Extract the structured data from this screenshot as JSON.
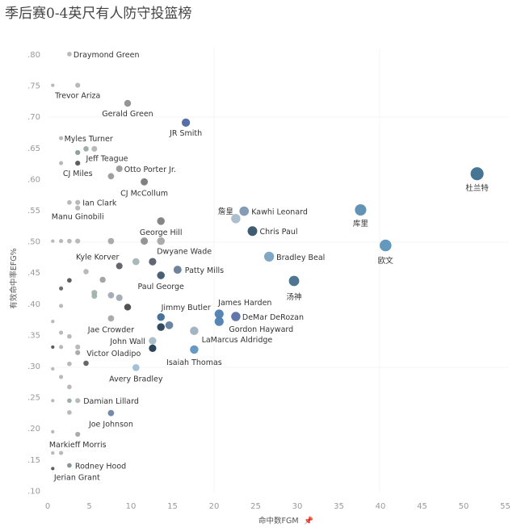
{
  "chart_data": {
    "type": "scatter",
    "title": "季后赛0-4英尺有人防守投篮榜",
    "xlabel": "命中数FGM",
    "ylabel": "有效命中率EFG%",
    "xlim": [
      0,
      55
    ],
    "ylim": [
      0.1,
      0.8
    ],
    "xticks": [
      "0",
      "5",
      "10",
      "15",
      "20",
      "25",
      "30",
      "35",
      "40",
      "45",
      "50",
      "55"
    ],
    "yticks": [
      ".80",
      ".75",
      ".70",
      ".65",
      ".60",
      ".55",
      ".50",
      ".45",
      ".40",
      ".35",
      ".30",
      ".25",
      ".20",
      ".15",
      ".10"
    ],
    "grid": false,
    "size_encodes": "FGM",
    "points": [
      {
        "label": "Draymond Green",
        "x": 3,
        "y": 0.8
      },
      {
        "x": 1,
        "y": 0.75
      },
      {
        "label": "Trevor Ariza",
        "x": 4,
        "y": 0.75
      },
      {
        "label": "Gerald Green",
        "x": 10,
        "y": 0.721,
        "c": "#8f8f8f"
      },
      {
        "label": "JR Smith",
        "x": 17,
        "y": 0.69,
        "c": "#4d67a0"
      },
      {
        "label": "Myles Turner",
        "x": 2,
        "y": 0.665
      },
      {
        "label": "Jeff Teague",
        "x": 5,
        "y": 0.648,
        "c": "#9aa9a8"
      },
      {
        "x": 6,
        "y": 0.648
      },
      {
        "x": 4,
        "y": 0.642,
        "c": "#8a9a9a"
      },
      {
        "x": 2,
        "y": 0.625
      },
      {
        "label": "CJ Miles",
        "x": 4,
        "y": 0.625,
        "c": "#555"
      },
      {
        "label": "Otto Porter Jr.",
        "x": 9,
        "y": 0.616,
        "c": "#9a9a9a"
      },
      {
        "x": 8,
        "y": 0.604,
        "c": "#9a9a9a"
      },
      {
        "label": "CJ McCollum",
        "x": 12,
        "y": 0.595,
        "c": "#7a7a7a"
      },
      {
        "x": 3,
        "y": 0.562
      },
      {
        "label": "Ian Clark",
        "x": 4,
        "y": 0.562
      },
      {
        "label": "Manu Ginobili",
        "x": 4,
        "y": 0.553
      },
      {
        "label": "Kawhi Leonard",
        "x": 24,
        "y": 0.548,
        "c": "#7d98b3"
      },
      {
        "label": "詹皇",
        "x": 23,
        "y": 0.536,
        "c": "#a9bccb"
      },
      {
        "label": "库里",
        "x": 38,
        "y": 0.55,
        "c": "#5b8db0"
      },
      {
        "label": "George Hill",
        "x": 14,
        "y": 0.532,
        "c": "#7f7f7f"
      },
      {
        "label": "Chris Paul",
        "x": 25,
        "y": 0.516,
        "c": "#34546b"
      },
      {
        "label": "杜兰特",
        "x": 52,
        "y": 0.608,
        "c": "#3d6e8e"
      },
      {
        "label": "欧文",
        "x": 41,
        "y": 0.493,
        "c": "#5a93b8"
      },
      {
        "x": 1,
        "y": 0.5
      },
      {
        "x": 2,
        "y": 0.5
      },
      {
        "x": 3,
        "y": 0.5
      },
      {
        "x": 4,
        "y": 0.5
      },
      {
        "x": 8,
        "y": 0.5,
        "c": "#a6a6a6"
      },
      {
        "x": 12,
        "y": 0.5,
        "c": "#8f8f8f"
      },
      {
        "label": "Dwyane Wade",
        "x": 14,
        "y": 0.5,
        "c": "#a6a6a6"
      },
      {
        "label": "Bradley Beal",
        "x": 27,
        "y": 0.475,
        "c": "#79a3c2"
      },
      {
        "label": "Kyle Korver",
        "x": 9,
        "y": 0.46,
        "c": "#5e5e66"
      },
      {
        "x": 11,
        "y": 0.467,
        "c": "#a4b4b4"
      },
      {
        "x": 13,
        "y": 0.467,
        "c": "#5a5f6e"
      },
      {
        "label": "Patty Mills",
        "x": 16,
        "y": 0.454,
        "c": "#687c98"
      },
      {
        "label": "Paul George",
        "x": 14,
        "y": 0.445,
        "c": "#3f566e"
      },
      {
        "label": "汤神",
        "x": 30,
        "y": 0.436,
        "c": "#426f8c"
      },
      {
        "x": 5,
        "y": 0.451
      },
      {
        "x": 3,
        "y": 0.437,
        "c": "#555"
      },
      {
        "x": 2,
        "y": 0.424,
        "c": "#666"
      },
      {
        "x": 7,
        "y": 0.438,
        "c": "#a0a0a0"
      },
      {
        "x": 6,
        "y": 0.417,
        "c": "#9fb3ad"
      },
      {
        "x": 6,
        "y": 0.412,
        "c": "#9fb3ad"
      },
      {
        "x": 8,
        "y": 0.413,
        "c": "#a0aab4"
      },
      {
        "x": 9,
        "y": 0.409,
        "c": "#a0aab4"
      },
      {
        "x": 2,
        "y": 0.396
      },
      {
        "x": 10,
        "y": 0.394,
        "c": "#4a4a4a"
      },
      {
        "x": 1,
        "y": 0.371
      },
      {
        "label": "Jae Crowder",
        "x": 8,
        "y": 0.376,
        "c": "#a6a6a6"
      },
      {
        "label": "Jimmy Butler",
        "x": 14,
        "y": 0.378,
        "c": "#3d6a95"
      },
      {
        "x": 15,
        "y": 0.365,
        "c": "#5f7fa0"
      },
      {
        "x": 14,
        "y": 0.362,
        "c": "#27415a"
      },
      {
        "label": "James Harden",
        "x": 21,
        "y": 0.383,
        "c": "#4f80b0"
      },
      {
        "label": "Gordon Hayward",
        "x": 21,
        "y": 0.371,
        "c": "#4f80b0"
      },
      {
        "label": "DeMar DeRozan",
        "x": 23,
        "y": 0.379,
        "c": "#5a6fa8"
      },
      {
        "label": "LaMarcus Aldridge",
        "x": 18,
        "y": 0.356,
        "c": "#9fb1bf"
      },
      {
        "label": "John Wall",
        "x": 13,
        "y": 0.34,
        "c": "#a4bcc8"
      },
      {
        "x": 13,
        "y": 0.328,
        "c": "#233a50"
      },
      {
        "label": "Isaiah Thomas",
        "x": 18,
        "y": 0.326,
        "c": "#5f95c0"
      },
      {
        "x": 1,
        "y": 0.33,
        "c": "#555"
      },
      {
        "x": 2,
        "y": 0.33
      },
      {
        "x": 2,
        "y": 0.353
      },
      {
        "x": 3,
        "y": 0.347
      },
      {
        "x": 4,
        "y": 0.33
      },
      {
        "label": "Victor Oladipo",
        "x": 4,
        "y": 0.321,
        "c": "#a6a6a6"
      },
      {
        "x": 5,
        "y": 0.304,
        "c": "#5e5e5e"
      },
      {
        "x": 3,
        "y": 0.303
      },
      {
        "x": 1,
        "y": 0.295
      },
      {
        "label": "Avery Bradley",
        "x": 11,
        "y": 0.297,
        "c": "#9fbcd4"
      },
      {
        "x": 2,
        "y": 0.282
      },
      {
        "x": 3,
        "y": 0.266
      },
      {
        "x": 1,
        "y": 0.244
      },
      {
        "x": 3,
        "y": 0.244,
        "c": "#9aaaa8"
      },
      {
        "label": "Damian Lillard",
        "x": 4,
        "y": 0.244
      },
      {
        "x": 3,
        "y": 0.225
      },
      {
        "label": "Joe Johnson",
        "x": 8,
        "y": 0.224,
        "c": "#6d85a0"
      },
      {
        "x": 1,
        "y": 0.194
      },
      {
        "label": "Markieff Morris",
        "x": 4,
        "y": 0.19,
        "c": "#a6a6a6"
      },
      {
        "x": 1,
        "y": 0.16
      },
      {
        "x": 2,
        "y": 0.16
      },
      {
        "label": "Rodney Hood",
        "x": 3,
        "y": 0.14,
        "c": "#7f9090"
      },
      {
        "label": "Jerian Grant",
        "x": 1,
        "y": 0.135,
        "c": "#555"
      }
    ]
  }
}
